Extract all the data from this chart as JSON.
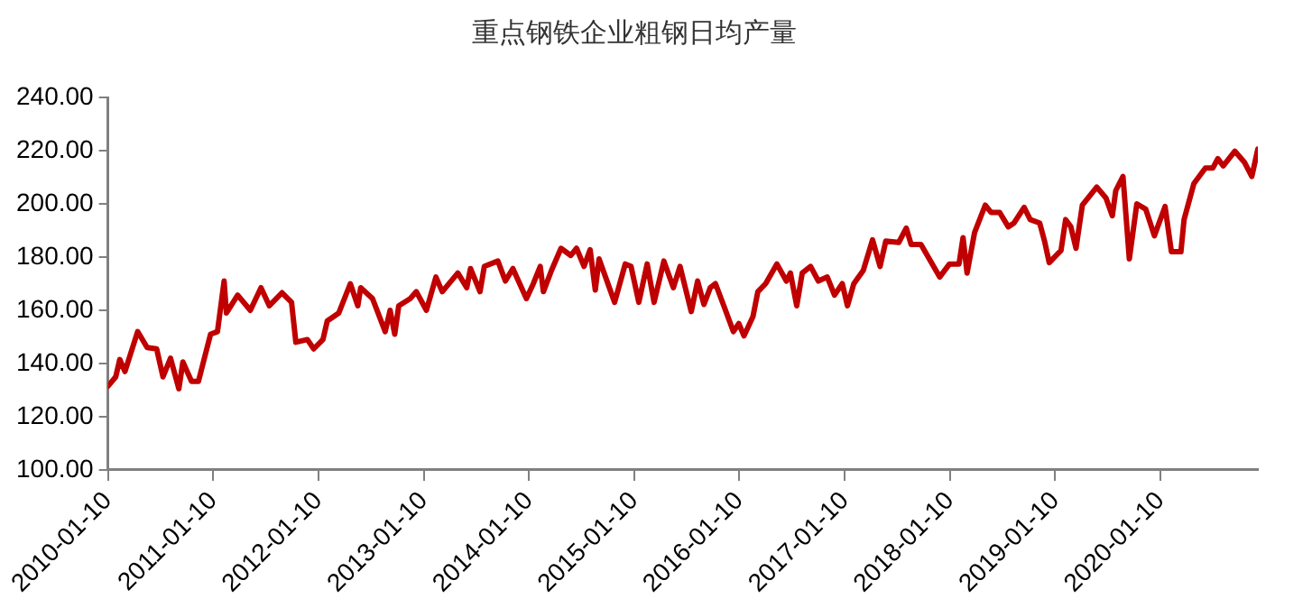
{
  "chart_data": {
    "type": "line",
    "title": "重点钢铁企业粗钢日均产量",
    "x": [
      "2010-01-10",
      "2010-02-06",
      "2010-02-20",
      "2010-03-10",
      "2010-04-23",
      "2010-05-26",
      "2010-06-28",
      "2010-07-20",
      "2010-08-15",
      "2010-09-13",
      "2010-09-27",
      "2010-10-27",
      "2010-11-20",
      "2011-01-01",
      "2011-01-25",
      "2011-02-17",
      "2011-02-25",
      "2011-04-05",
      "2011-05-19",
      "2011-06-25",
      "2011-07-24",
      "2011-09-06",
      "2011-10-09",
      "2011-10-24",
      "2011-12-03",
      "2011-12-25",
      "2012-01-26",
      "2012-02-10",
      "2012-03-21",
      "2012-04-30",
      "2012-05-26",
      "2012-06-05",
      "2012-07-16",
      "2012-08-29",
      "2012-09-15",
      "2012-10-01",
      "2012-10-15",
      "2012-11-24",
      "2012-12-15",
      "2013-01-19",
      "2013-02-21",
      "2013-03-15",
      "2013-05-08",
      "2013-06-08",
      "2013-06-21",
      "2013-07-24",
      "2013-08-08",
      "2013-09-24",
      "2013-10-20",
      "2013-11-15",
      "2014-01-01",
      "2014-01-25",
      "2014-02-18",
      "2014-03-01",
      "2014-03-29",
      "2014-05-01",
      "2014-06-04",
      "2014-06-24",
      "2014-07-20",
      "2014-08-10",
      "2014-08-28",
      "2014-09-10",
      "2014-11-03",
      "2014-12-10",
      "2014-12-30",
      "2015-01-26",
      "2015-02-24",
      "2015-03-20",
      "2015-04-23",
      "2015-05-26",
      "2015-06-18",
      "2015-07-27",
      "2015-08-18",
      "2015-09-09",
      "2015-10-01",
      "2015-10-19",
      "2015-11-17",
      "2015-12-20",
      "2016-01-08",
      "2016-01-26",
      "2016-02-26",
      "2016-03-14",
      "2016-04-10",
      "2016-05-19",
      "2016-06-21",
      "2016-07-05",
      "2016-07-27",
      "2016-08-15",
      "2016-09-13",
      "2016-10-10",
      "2016-11-10",
      "2016-12-05",
      "2017-01-01",
      "2017-01-19",
      "2017-02-10",
      "2017-03-15",
      "2017-04-16",
      "2017-05-12",
      "2017-06-01",
      "2017-07-16",
      "2017-08-11",
      "2017-08-28",
      "2017-10-01",
      "2017-12-05",
      "2018-01-08",
      "2018-02-10",
      "2018-02-24",
      "2018-03-10",
      "2018-04-05",
      "2018-05-12",
      "2018-06-01",
      "2018-07-01",
      "2018-07-31",
      "2018-08-20",
      "2018-09-24",
      "2018-10-15",
      "2018-11-17",
      "2018-12-05",
      "2018-12-20",
      "2019-01-30",
      "2019-02-15",
      "2019-03-05",
      "2019-03-23",
      "2019-04-14",
      "2019-06-03",
      "2019-07-05",
      "2019-07-27",
      "2019-08-08",
      "2019-09-02",
      "2019-09-24",
      "2019-10-20",
      "2019-11-20",
      "2019-12-20",
      "2020-01-26",
      "2020-02-17",
      "2020-03-21",
      "2020-04-01",
      "2020-05-05",
      "2020-06-14",
      "2020-07-10",
      "2020-07-27",
      "2020-08-15",
      "2020-09-24",
      "2020-10-27",
      "2020-11-22",
      "2020-12-13"
    ],
    "series": [
      {
        "color": "#c00000",
        "values": [
          131.5,
          135,
          141.5,
          137,
          152,
          146,
          145.5,
          135,
          142,
          130.5,
          140.6,
          133.3,
          133.3,
          151,
          152,
          171,
          159,
          165.7,
          160,
          168.5,
          161.7,
          166.6,
          163,
          148,
          149,
          145.5,
          149,
          156,
          159,
          170,
          161.7,
          168.5,
          164.4,
          152,
          160,
          151,
          161.7,
          164.4,
          167,
          160,
          172.5,
          167,
          174,
          168.5,
          175.7,
          167,
          176.5,
          178.5,
          171,
          175.7,
          164.4,
          170,
          176.5,
          167,
          175,
          183.3,
          180.6,
          183.3,
          176.5,
          182.8,
          167.6,
          179.3,
          163,
          177.4,
          176.5,
          163,
          177.4,
          163,
          178.5,
          168.5,
          176.5,
          159.5,
          171,
          162.2,
          168.5,
          170,
          161.7,
          152,
          155,
          150.4,
          157.6,
          167,
          170,
          177.4,
          171,
          174,
          161.7,
          174,
          176.5,
          171,
          172.5,
          165.7,
          170,
          161.7,
          170,
          175,
          186.5,
          176.5,
          186,
          185.5,
          190.9,
          184.7,
          184.7,
          172.5,
          177.4,
          177.4,
          187.3,
          174,
          189.2,
          199.5,
          196.8,
          196.8,
          191.4,
          192.8,
          198.7,
          194.1,
          192.8,
          185.5,
          177.9,
          182.5,
          194.1,
          191.4,
          183.3,
          199.5,
          206.3,
          202.2,
          195.5,
          205,
          210.3,
          179.3,
          200,
          198,
          188,
          199,
          182,
          182,
          194.1,
          207.6,
          213.5,
          213.5,
          217,
          214.3,
          219.8,
          215.7,
          210.3,
          220.6
        ]
      }
    ],
    "xlim": [
      "2010-01-10",
      "2020-12-13"
    ],
    "xticks": [
      "2010-01-10",
      "2011-01-10",
      "2012-01-10",
      "2013-01-10",
      "2014-01-10",
      "2015-01-10",
      "2016-01-10",
      "2017-01-10",
      "2018-01-10",
      "2019-01-10",
      "2020-01-10"
    ],
    "ylim": [
      100,
      240
    ],
    "yticks": [
      {
        "value": 100,
        "label": "100.00"
      },
      {
        "value": 120,
        "label": "120.00"
      },
      {
        "value": 140,
        "label": "140.00"
      },
      {
        "value": 160,
        "label": "160.00"
      },
      {
        "value": 180,
        "label": "180.00"
      },
      {
        "value": 200,
        "label": "200.00"
      },
      {
        "value": 220,
        "label": "220.00"
      },
      {
        "value": 240,
        "label": "240.00"
      }
    ],
    "grid": false,
    "legend": false,
    "marker": "none",
    "line_style": "solid"
  }
}
